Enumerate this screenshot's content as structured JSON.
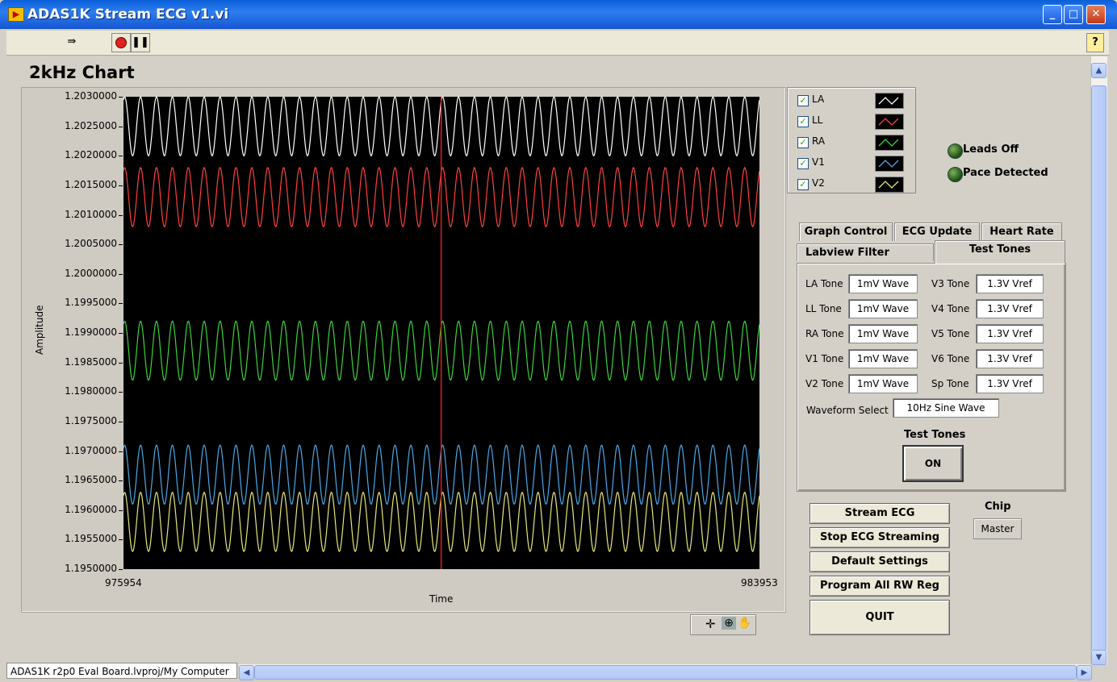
{
  "window": {
    "title": "ADAS1K Stream ECG v1.vi"
  },
  "toolbar": {
    "help_label": "?"
  },
  "chart": {
    "title": "2kHz Chart"
  },
  "chart_data": {
    "type": "line",
    "title": "2kHz Chart",
    "xlabel": "Time",
    "ylabel": "Amplitude",
    "xlim": [
      975954,
      983953
    ],
    "ylim": [
      1.195,
      1.203
    ],
    "x_tick_labels": [
      "975954",
      "983953"
    ],
    "y_tick_labels": [
      "1.2030000",
      "1.2025000",
      "1.2020000",
      "1.2015000",
      "1.2010000",
      "1.2005000",
      "1.2000000",
      "1.1995000",
      "1.1990000",
      "1.1985000",
      "1.1980000",
      "1.1975000",
      "1.1970000",
      "1.1965000",
      "1.1960000",
      "1.1955000",
      "1.1950000"
    ],
    "cursor_x": 979950,
    "series": [
      {
        "name": "LA",
        "color": "#ffffff",
        "center": 1.2025,
        "amplitude": 0.0005,
        "cycles": 40
      },
      {
        "name": "LL",
        "color": "#ff4040",
        "center": 1.2013,
        "amplitude": 0.0005,
        "cycles": 40
      },
      {
        "name": "RA",
        "color": "#3cd23c",
        "center": 1.1987,
        "amplitude": 0.0005,
        "cycles": 40
      },
      {
        "name": "V1",
        "color": "#4aa8e8",
        "center": 1.1966,
        "amplitude": 0.0005,
        "cycles": 40
      },
      {
        "name": "V2",
        "color": "#e6e67a",
        "center": 1.1958,
        "amplitude": 0.0005,
        "cycles": 40
      }
    ]
  },
  "legend": {
    "items": [
      {
        "label": "LA",
        "color": "#ffffff"
      },
      {
        "label": "LL",
        "color": "#ff4040"
      },
      {
        "label": "RA",
        "color": "#3cd23c"
      },
      {
        "label": "V1",
        "color": "#4aa8e8"
      },
      {
        "label": "V2",
        "color": "#e6e67a"
      }
    ]
  },
  "indicators": {
    "leads_off": "Leads Off",
    "pace_detected": "Pace Detected"
  },
  "tabs": {
    "row1": [
      "Graph Control",
      "ECG Update",
      "Heart Rate"
    ],
    "row2": [
      "Labview Filter",
      "Test Tones"
    ],
    "active": "Test Tones"
  },
  "test_tones": {
    "left": [
      {
        "label": "LA Tone",
        "value": "1mV Wave"
      },
      {
        "label": "LL Tone",
        "value": "1mV Wave"
      },
      {
        "label": "RA Tone",
        "value": "1mV Wave"
      },
      {
        "label": "V1 Tone",
        "value": "1mV Wave"
      },
      {
        "label": "V2 Tone",
        "value": "1mV Wave"
      }
    ],
    "right": [
      {
        "label": "V3 Tone",
        "value": "1.3V Vref"
      },
      {
        "label": "V4 Tone",
        "value": "1.3V Vref"
      },
      {
        "label": "V5 Tone",
        "value": "1.3V Vref"
      },
      {
        "label": "V6 Tone",
        "value": "1.3V Vref"
      },
      {
        "label": "Sp Tone",
        "value": "1.3V Vref"
      }
    ],
    "waveform_label": "Waveform Select",
    "waveform_value": "10Hz Sine Wave",
    "toggle_label": "Test Tones",
    "toggle_value": "ON"
  },
  "buttons": {
    "stream": "Stream ECG",
    "stop": "Stop ECG Streaming",
    "defaults": "Default Settings",
    "program": "Program All RW Reg",
    "quit": "QUIT"
  },
  "chip": {
    "label": "Chip",
    "value": "Master"
  },
  "statusbar": {
    "project": "ADAS1K r2p0 Eval Board.lvproj/My Computer"
  }
}
